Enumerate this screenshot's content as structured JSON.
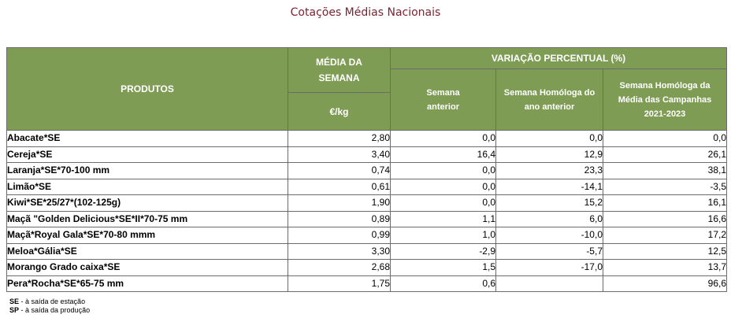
{
  "title": "Cotações Médias Nacionais",
  "headers": {
    "produtos": "PRODUTOS",
    "media_semana": "MÉDIA DA SEMANA",
    "unit": "€/kg",
    "variacao": "VARIAÇÃO PERCENTUAL (%)",
    "semana_anterior": "Semana anterior",
    "semana_homologa": "Semana Homóloga do ano anterior",
    "semana_homologa_campanhas": "Semana Homóloga da Média das Campanhas 2021-2023"
  },
  "rows": [
    {
      "produto": "Abacate*SE",
      "media": "2,80",
      "sem_ant": "0,0",
      "homologa": "0,0",
      "campanhas": "0,0"
    },
    {
      "produto": "Cereja*SE",
      "media": "3,40",
      "sem_ant": "16,4",
      "homologa": "12,9",
      "campanhas": "26,1"
    },
    {
      "produto": "Laranja*SE*70-100 mm",
      "media": "0,74",
      "sem_ant": "0,0",
      "homologa": "23,3",
      "campanhas": "38,1"
    },
    {
      "produto": "Limão*SE",
      "media": "0,61",
      "sem_ant": "0,0",
      "homologa": "-14,1",
      "campanhas": "-3,5"
    },
    {
      "produto": "Kiwi*SE*25/27*(102-125g)",
      "media": "1,90",
      "sem_ant": "0,0",
      "homologa": "15,2",
      "campanhas": "16,1"
    },
    {
      "produto": "Maçã \"Golden Delicious*SE*II*70-75 mm",
      "media": "0,89",
      "sem_ant": "1,1",
      "homologa": "6,0",
      "campanhas": "16,6"
    },
    {
      "produto": "Maçã*Royal Gala*SE*70-80 mmm",
      "media": "0,99",
      "sem_ant": "1,0",
      "homologa": "-10,0",
      "campanhas": "17,2"
    },
    {
      "produto": "Meloa*Gália*SE",
      "media": "3,30",
      "sem_ant": "-2,9",
      "homologa": "-5,7",
      "campanhas": "12,5"
    },
    {
      "produto": "Morango Grado caixa*SE",
      "media": "2,68",
      "sem_ant": "1,5",
      "homologa": "-17,0",
      "campanhas": "13,7"
    },
    {
      "produto": "Pera*Rocha*SE*65-75 mm",
      "media": "1,75",
      "sem_ant": "0,6",
      "homologa": "",
      "campanhas": "96,6"
    }
  ],
  "legend": [
    {
      "code": "SE",
      "text": " - à saída de estação"
    },
    {
      "code": "SP",
      "text": " - à saída da produção"
    }
  ]
}
